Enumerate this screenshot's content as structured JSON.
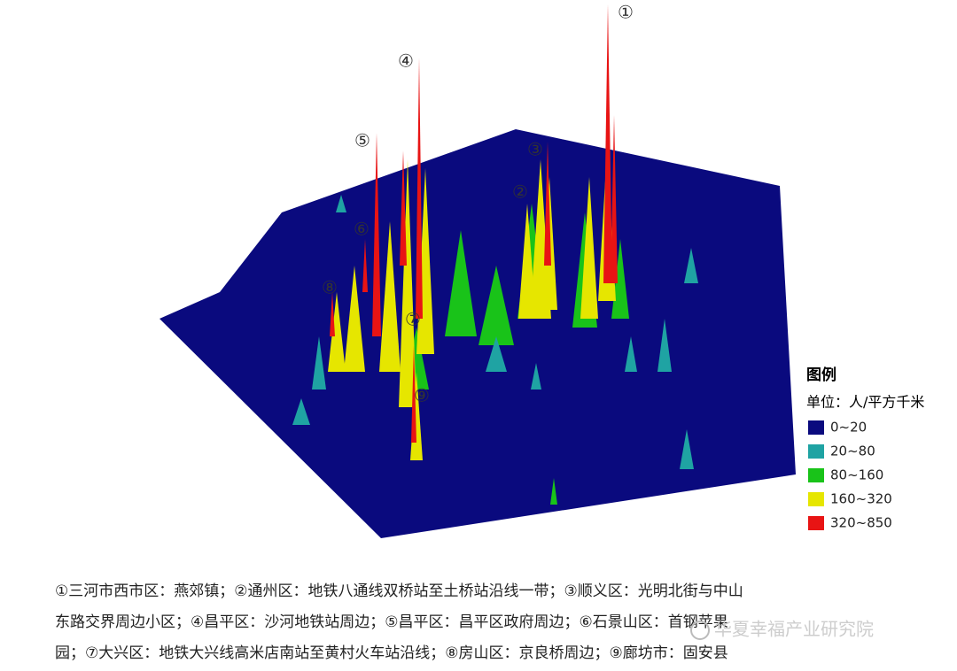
{
  "map": {
    "markers": [
      "①",
      "②",
      "③",
      "④",
      "⑤",
      "⑥",
      "⑦",
      "⑧",
      "⑨"
    ]
  },
  "legend": {
    "title": "图例",
    "unit": "单位：人/平方千米",
    "items": [
      {
        "label": "0~20",
        "color": "#0a0a7e"
      },
      {
        "label": "20~80",
        "color": "#1fa3a3"
      },
      {
        "label": "80~160",
        "color": "#19c319"
      },
      {
        "label": "160~320",
        "color": "#e6e600"
      },
      {
        "label": "320~850",
        "color": "#e81414"
      }
    ]
  },
  "caption": {
    "lines": [
      "①三河市西市区：燕郊镇；②通州区：地铁八通线双桥站至土桥站沿线一带；③顺义区：光明北街与中山",
      "东路交界周边小区；④昌平区：沙河地铁站周边；⑤昌平区：昌平区政府周边；⑥石景山区：首钢苹果",
      "园；⑦大兴区：地铁大兴线高米店南站至黄村火车站沿线；⑧房山区：京良桥周边；⑨廊坊市：固安县"
    ]
  },
  "watermark": "华夏幸福产业研究院"
}
